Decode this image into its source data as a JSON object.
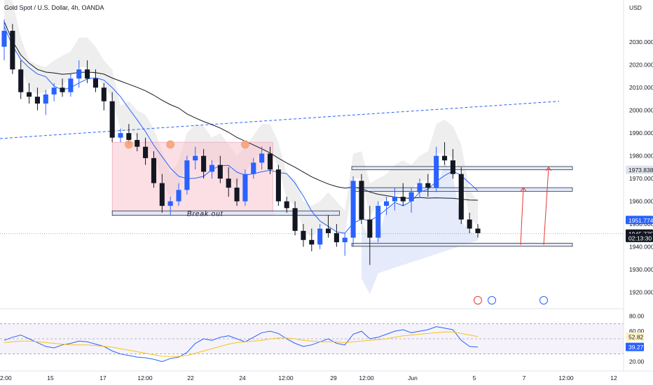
{
  "chart_data": {
    "type": "candlestick",
    "title": "Gold Spot / U.S. Dollar, 4h, OANDA",
    "currency": "USD",
    "y_ticks": [
      2030,
      2020,
      2010,
      2000,
      1990,
      1980,
      1970,
      1960,
      1950,
      1940,
      1930,
      1920
    ],
    "y_tick_labels": [
      "2030.000",
      "2020.000",
      "2010.000",
      "2000.000",
      "1990.000",
      "1980.000",
      "1970.000",
      "1960.000",
      "1950.000",
      "1940.000",
      "1930.000",
      "1920.000"
    ],
    "ylim": [
      1914,
      2043
    ],
    "x_labels": [
      "2:00",
      "15",
      "17",
      "12:00",
      "22",
      "24",
      "12:00",
      "29",
      "12:00",
      "Jun",
      "5",
      "7",
      "12:00",
      "12"
    ],
    "price_tags": [
      {
        "label": "1973.838",
        "value": 1973.838,
        "color": "#e0e3eb",
        "text_color": "#131722"
      },
      {
        "label": "1951.774",
        "value": 1951.774,
        "color": "#2962ff",
        "text_color": "#ffffff"
      },
      {
        "label": "1945.775",
        "value": 1945.775,
        "color": "#131722",
        "text_color": "#ffffff"
      },
      {
        "label": "02:13:30",
        "value": 1943.9,
        "color": "#131722",
        "text_color": "#ffffff"
      }
    ],
    "annotation": "Break out",
    "colors": {
      "up": "#2962ff",
      "down": "#131722",
      "ma_blue": "#2962ff",
      "ma_black": "#131722",
      "pink_zone": "#f7c5cf",
      "zone_blue": "#dbe3fa",
      "arrow_red": "#e53935",
      "circle": "#f4a37a"
    },
    "candles": [
      [
        2028,
        2040,
        2022,
        2035
      ],
      [
        2035,
        2038,
        2016,
        2018
      ],
      [
        2018,
        2022,
        2005,
        2008
      ],
      [
        2008,
        2012,
        2003,
        2006
      ],
      [
        2006,
        2010,
        2000,
        2003
      ],
      [
        2003,
        2009,
        1998,
        2007
      ],
      [
        2007,
        2012,
        2004,
        2010
      ],
      [
        2010,
        2014,
        2006,
        2008
      ],
      [
        2008,
        2016,
        2006,
        2014
      ],
      [
        2014,
        2022,
        2010,
        2018
      ],
      [
        2018,
        2022,
        2012,
        2014
      ],
      [
        2014,
        2018,
        2008,
        2010
      ],
      [
        2010,
        2012,
        2000,
        2004
      ],
      [
        2004,
        2008,
        1986,
        1988
      ],
      [
        1988,
        1992,
        1986,
        1990
      ],
      [
        1990,
        1994,
        1985,
        1987
      ],
      [
        1987,
        1990,
        1982,
        1984
      ],
      [
        1984,
        1988,
        1976,
        1979
      ],
      [
        1979,
        1982,
        1966,
        1968
      ],
      [
        1968,
        1972,
        1955,
        1958
      ],
      [
        1958,
        1962,
        1954,
        1960
      ],
      [
        1960,
        1968,
        1958,
        1965
      ],
      [
        1965,
        1980,
        1963,
        1978
      ],
      [
        1978,
        1984,
        1974,
        1980
      ],
      [
        1980,
        1983,
        1970,
        1973
      ],
      [
        1973,
        1978,
        1970,
        1976
      ],
      [
        1976,
        1980,
        1968,
        1970
      ],
      [
        1970,
        1975,
        1962,
        1966
      ],
      [
        1966,
        1970,
        1958,
        1960
      ],
      [
        1960,
        1974,
        1958,
        1972
      ],
      [
        1972,
        1979,
        1970,
        1977
      ],
      [
        1977,
        1984,
        1974,
        1981
      ],
      [
        1981,
        1984,
        1972,
        1974
      ],
      [
        1974,
        1976,
        1958,
        1960
      ],
      [
        1960,
        1962,
        1955,
        1957
      ],
      [
        1957,
        1960,
        1945,
        1947
      ],
      [
        1947,
        1950,
        1940,
        1943
      ],
      [
        1943,
        1948,
        1938,
        1941
      ],
      [
        1941,
        1950,
        1939,
        1948
      ],
      [
        1948,
        1954,
        1944,
        1946
      ],
      [
        1946,
        1950,
        1940,
        1942
      ],
      [
        1942,
        1946,
        1936,
        1944
      ],
      [
        1944,
        1971,
        1940,
        1969
      ],
      [
        1969,
        1972,
        1950,
        1952
      ],
      [
        1952,
        1958,
        1932,
        1944
      ],
      [
        1944,
        1960,
        1942,
        1958
      ],
      [
        1958,
        1962,
        1954,
        1960
      ],
      [
        1960,
        1966,
        1956,
        1962
      ],
      [
        1962,
        1968,
        1958,
        1960
      ],
      [
        1960,
        1966,
        1955,
        1964
      ],
      [
        1964,
        1970,
        1962,
        1968
      ],
      [
        1968,
        1972,
        1962,
        1966
      ],
      [
        1966,
        1984,
        1964,
        1980
      ],
      [
        1980,
        1986,
        1976,
        1978
      ],
      [
        1978,
        1983,
        1970,
        1972
      ],
      [
        1972,
        1975,
        1950,
        1952
      ],
      [
        1952,
        1955,
        1946,
        1948
      ],
      [
        1948,
        1950,
        1944,
        1946
      ]
    ],
    "rsi": {
      "ylim": [
        15,
        85
      ],
      "y_ticks": [
        80,
        60,
        40,
        20
      ],
      "y_tick_labels": [
        "80.00",
        "60.00",
        "40.00",
        "20.00"
      ],
      "band": [
        30,
        70
      ],
      "current_value_labels": [
        "52.82",
        "39.27"
      ],
      "values": [
        48,
        52,
        55,
        50,
        45,
        40,
        38,
        42,
        44,
        47,
        46,
        43,
        40,
        34,
        30,
        28,
        26,
        25,
        23,
        20,
        24,
        26,
        32,
        44,
        50,
        48,
        52,
        54,
        50,
        46,
        52,
        58,
        60,
        57,
        50,
        44,
        40,
        42,
        46,
        50,
        44,
        42,
        56,
        60,
        50,
        52,
        56,
        60,
        62,
        58,
        60,
        62,
        66,
        64,
        62,
        48,
        40,
        39
      ],
      "signal": [
        45,
        46,
        47,
        47,
        46,
        45,
        44,
        43,
        42,
        42,
        42,
        41,
        40,
        39,
        37,
        35,
        33,
        31,
        29,
        27,
        27,
        27,
        28,
        31,
        34,
        37,
        40,
        43,
        45,
        46,
        47,
        48,
        50,
        51,
        51,
        50,
        48,
        47,
        46,
        46,
        46,
        45,
        46,
        47,
        48,
        49,
        50,
        52,
        54,
        55,
        56,
        57,
        58,
        59,
        59,
        57,
        55,
        53
      ]
    }
  }
}
